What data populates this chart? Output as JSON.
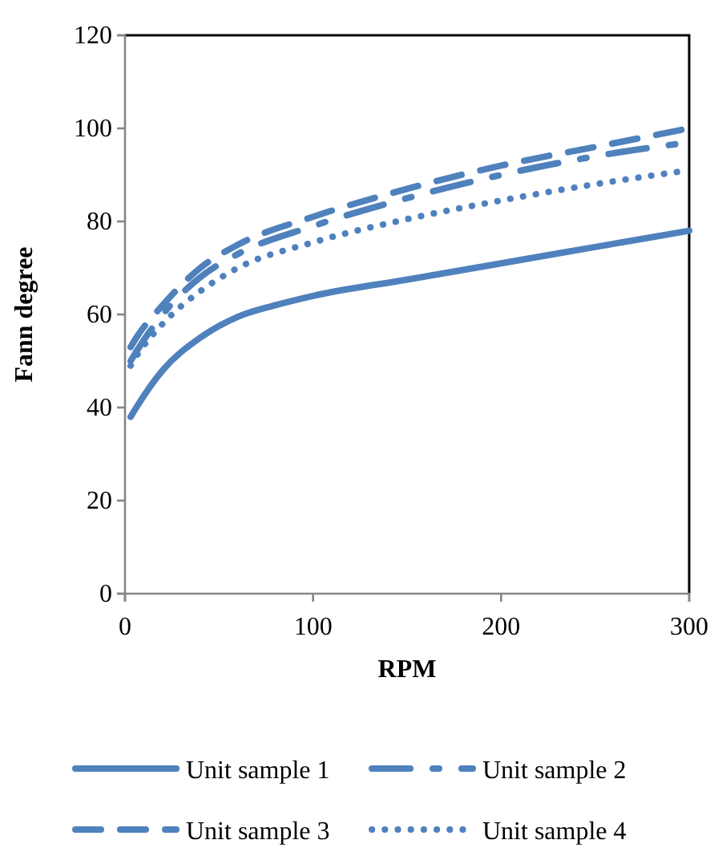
{
  "chart_data": {
    "type": "line",
    "xlabel": "RPM",
    "ylabel": "Fann degree",
    "xlim": [
      0,
      300
    ],
    "ylim": [
      0,
      120
    ],
    "xticks": [
      0,
      100,
      200,
      300
    ],
    "yticks": [
      0,
      20,
      40,
      60,
      80,
      100,
      120
    ],
    "grid": false,
    "legend": "bottom",
    "marker": "none",
    "series": [
      {
        "name": "Unit sample 1",
        "color": "#4f81bd",
        "line_style": "solid",
        "x": [
          3,
          6,
          20,
          40,
          60,
          80,
          100,
          150,
          200,
          250,
          300
        ],
        "values": [
          38,
          40,
          48,
          55,
          59.5,
          62,
          64,
          67.5,
          71,
          74.5,
          78
        ]
      },
      {
        "name": "Unit sample 2",
        "color": "#4f81bd",
        "line_style": "dashed",
        "x": [
          3,
          6,
          20,
          40,
          60,
          100,
          150,
          200,
          250,
          300
        ],
        "values": [
          50,
          52,
          60,
          68,
          73,
          79,
          85,
          90,
          94,
          97
        ]
      },
      {
        "name": "Unit sample 3",
        "color": "#4f81bd",
        "line_style": "dashed",
        "x": [
          3,
          6,
          20,
          40,
          60,
          100,
          150,
          200,
          250,
          300
        ],
        "values": [
          53,
          55,
          62,
          70,
          75,
          81,
          87,
          92,
          96,
          100
        ]
      },
      {
        "name": "Unit sample 4",
        "color": "#4f81bd",
        "line_style": "dotted",
        "x": [
          3,
          6,
          20,
          40,
          60,
          100,
          150,
          200,
          250,
          300
        ],
        "values": [
          49,
          51,
          58,
          65,
          70,
          75.5,
          80.5,
          84.5,
          88,
          91
        ]
      }
    ]
  }
}
